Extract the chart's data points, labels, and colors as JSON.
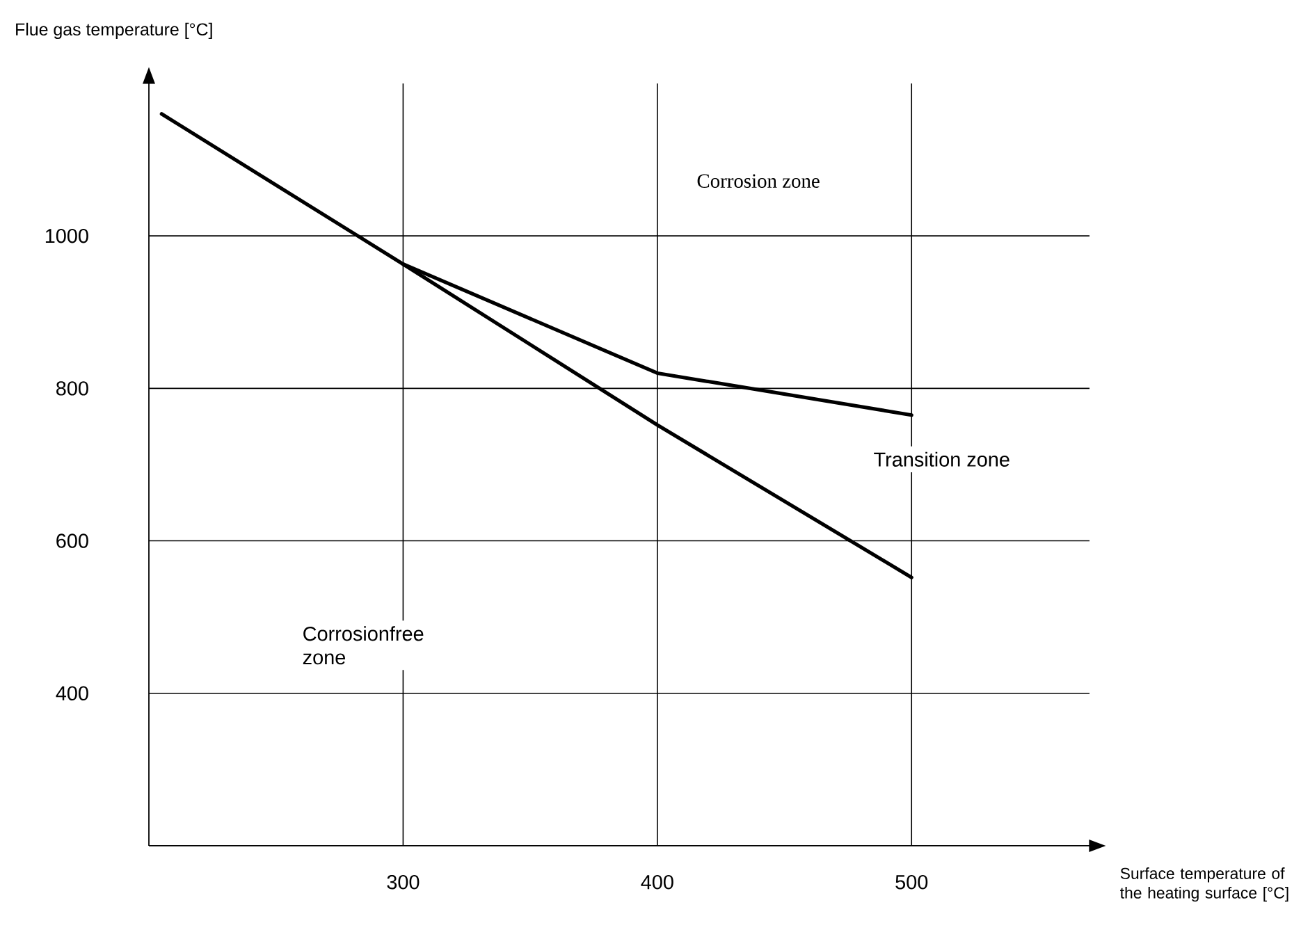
{
  "chart_data": {
    "type": "line",
    "xlabel": "Surface temperature of the heating surface [°C]",
    "ylabel": "Flue gas temperature [°C]",
    "xlim": [
      200,
      570
    ],
    "ylim": [
      200,
      1200
    ],
    "xticks": [
      300,
      400,
      500
    ],
    "yticks": [
      400,
      600,
      800,
      1000
    ],
    "grid": true,
    "marker": "none",
    "line_style": "solid",
    "series": [
      {
        "color": "#000000",
        "x": [
          205,
          300,
          400,
          500
        ],
        "values": [
          1160,
          963,
          752,
          552
        ]
      },
      {
        "color": "#000000",
        "x": [
          300,
          400,
          500
        ],
        "values": [
          963,
          820,
          765
        ]
      }
    ],
    "annotations": [
      "Corrosion zone",
      "Transition zone",
      "Corrosionfree zone"
    ]
  }
}
